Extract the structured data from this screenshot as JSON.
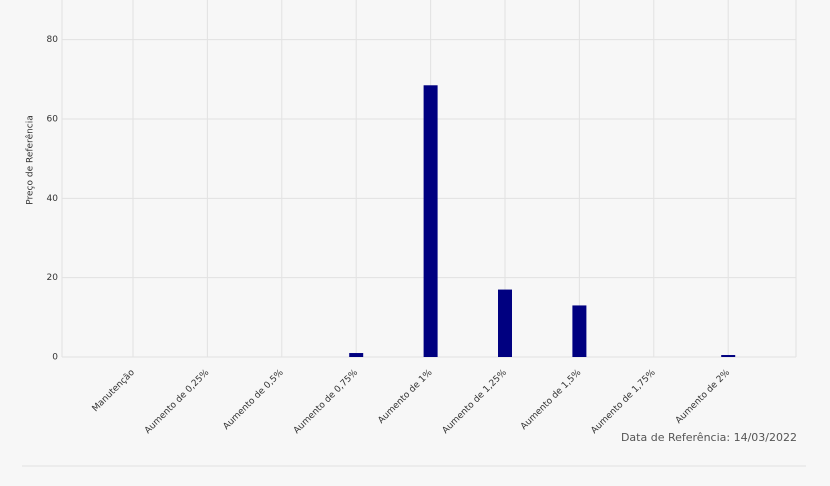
{
  "chart_data": {
    "type": "bar",
    "y_label": "Preço de Referência",
    "categories": [
      "Manutenção",
      "Aumento de 0,25%",
      "Aumento de 0,5%",
      "Aumento de 0,75%",
      "Aumento de 1%",
      "Aumento de 1,25%",
      "Aumento de 1,5%",
      "Aumento de 1,75%",
      "Aumento de 2%"
    ],
    "values": [
      0,
      0,
      0,
      1,
      68.5,
      17,
      13,
      0,
      0.5
    ],
    "color": "#000080",
    "ylim": [
      0,
      90
    ],
    "yticks": [
      0,
      20,
      40,
      60,
      80
    ],
    "grid": true,
    "footnote": "Data de Referência: 14/03/2022"
  }
}
